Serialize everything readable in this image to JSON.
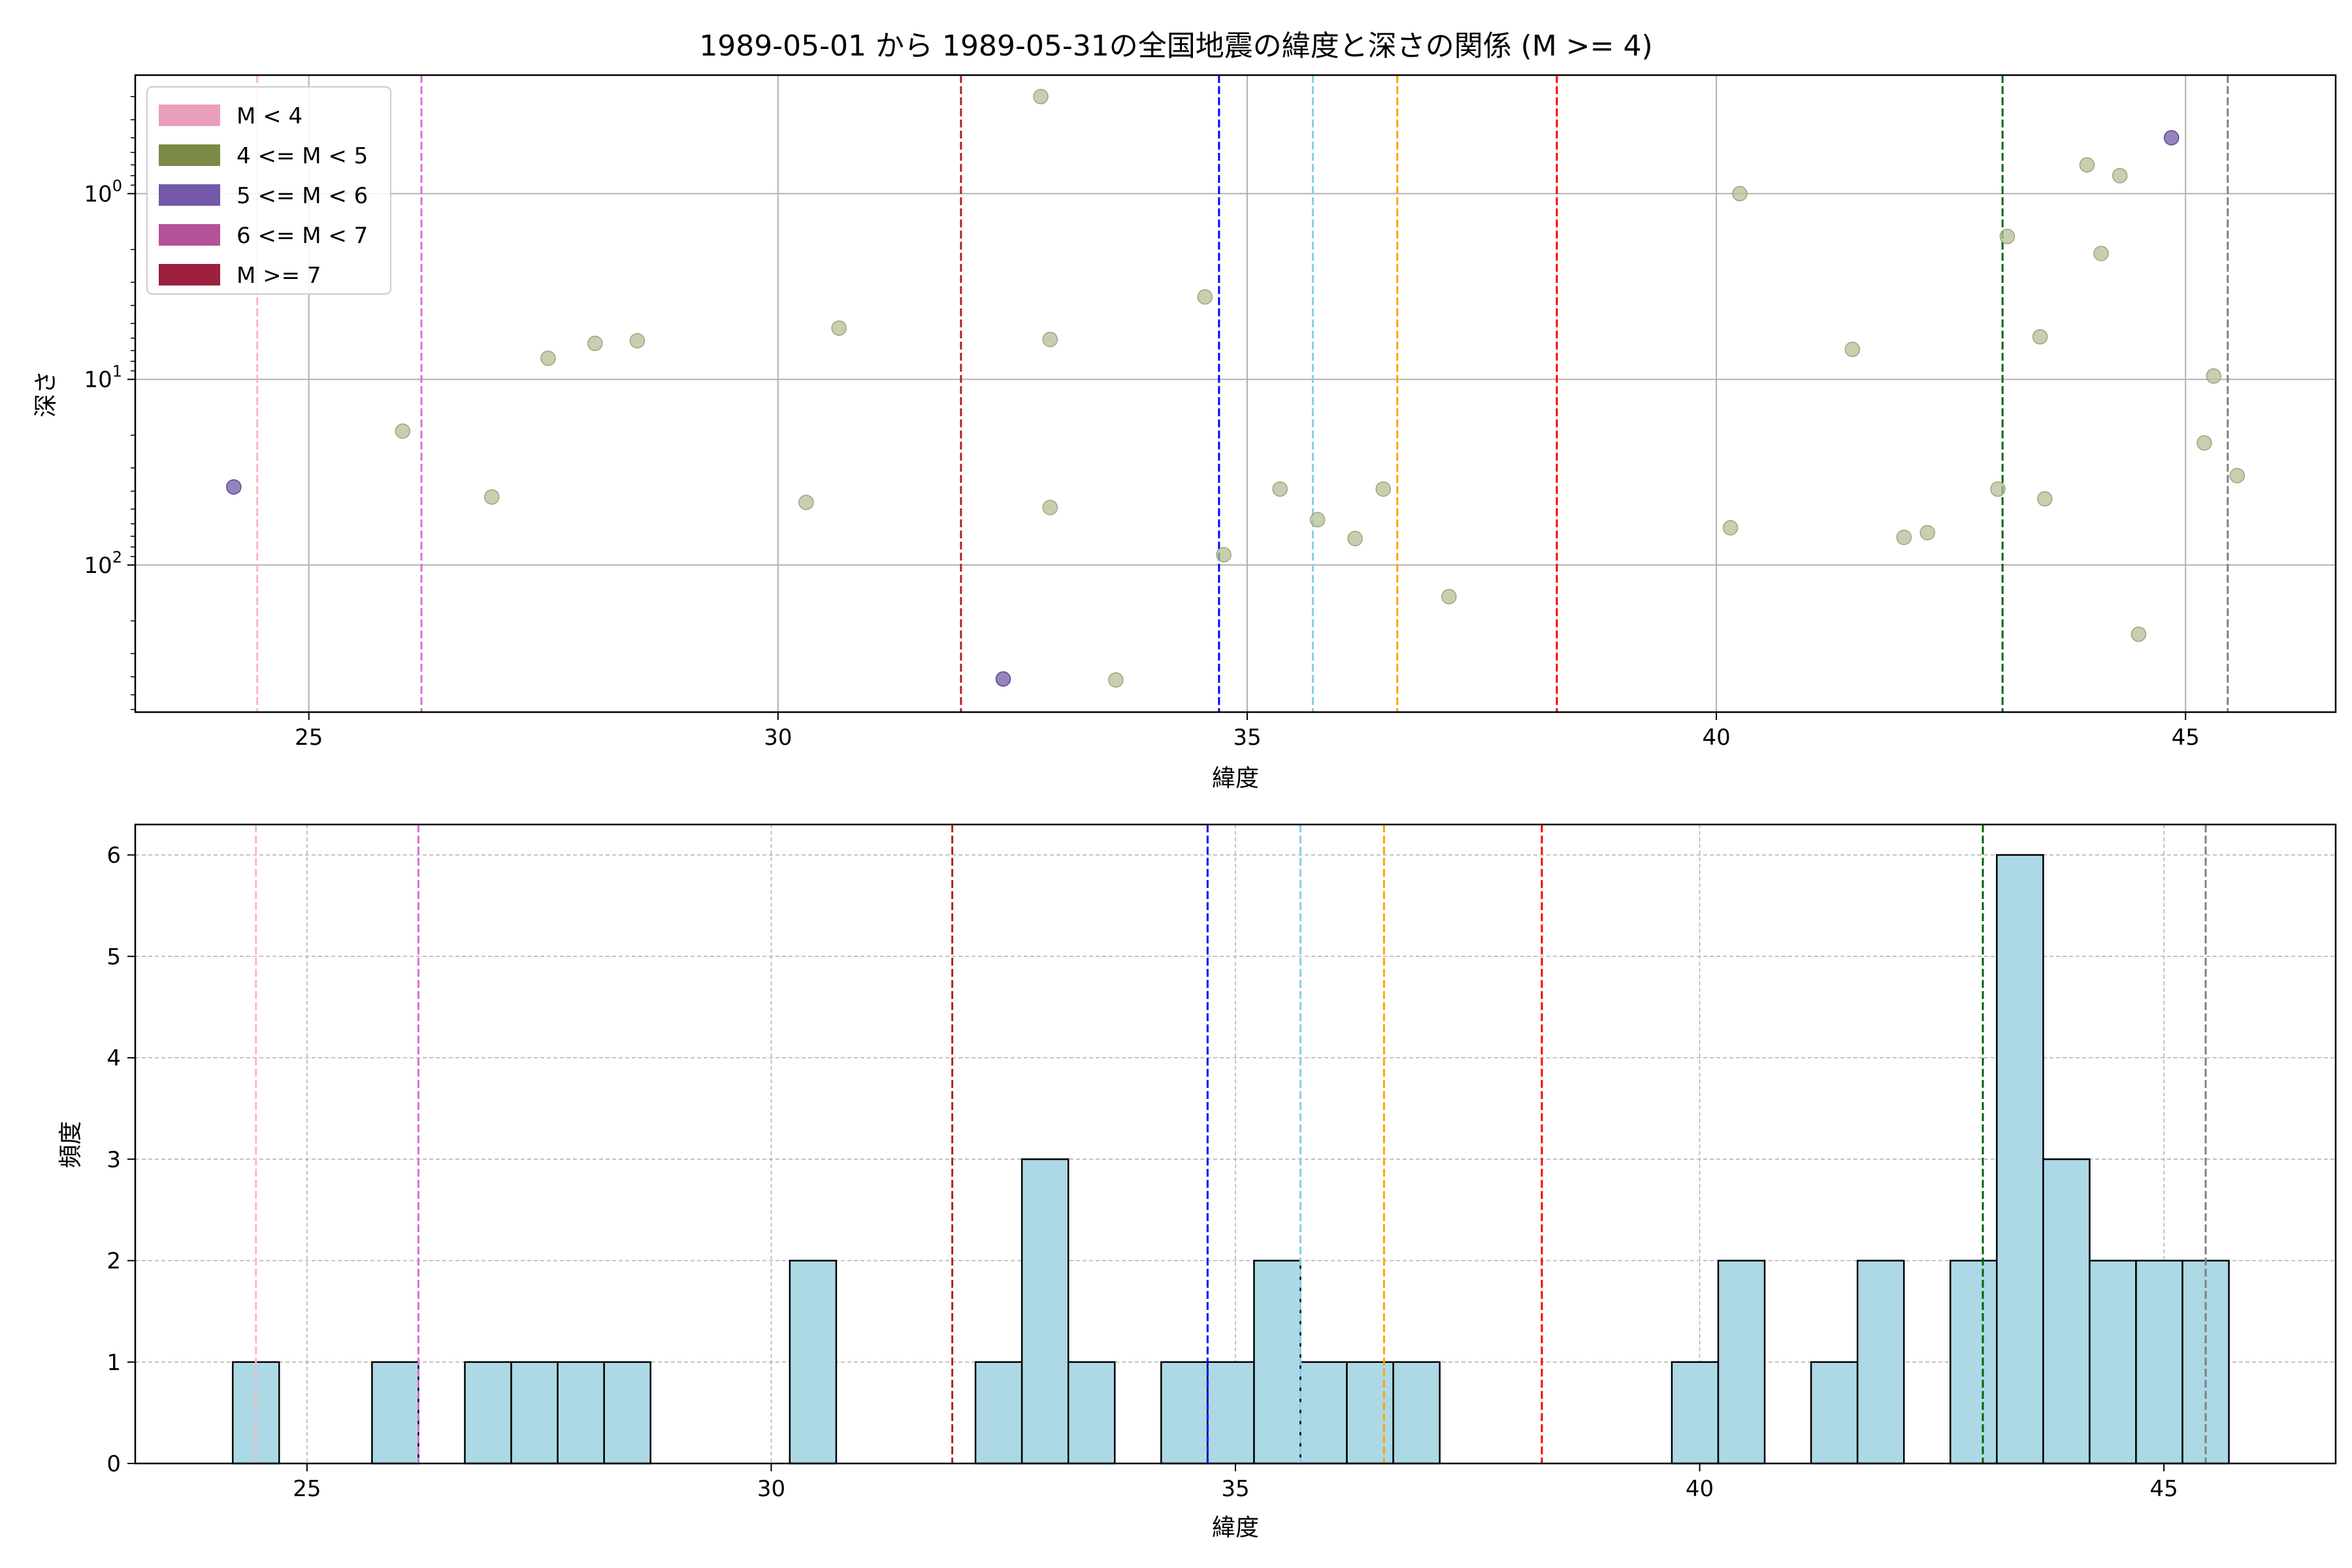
{
  "figure": {
    "title": "1989-05-01 から 1989-05-31の全国地震の緯度と深さの関係 (M >= 4)"
  },
  "scatter": {
    "xlabel": "緯度",
    "ylabel": "深さ",
    "x_ticks": [
      "25",
      "30",
      "35",
      "40",
      "45"
    ],
    "y_tick_labels": [
      {
        "base": "10",
        "exp": "0",
        "value": 1
      },
      {
        "base": "10",
        "exp": "1",
        "value": 10
      },
      {
        "base": "10",
        "exp": "2",
        "value": 100
      }
    ]
  },
  "legend": {
    "items": [
      {
        "label": "M < 4",
        "color": "#e89fbb"
      },
      {
        "label": "4 <= M < 5",
        "color": "#7b8b45"
      },
      {
        "label": "5 <= M < 6",
        "color": "#7359a8"
      },
      {
        "label": "6 <= M < 7",
        "color": "#b5519b"
      },
      {
        "label": "M >= 7",
        "color": "#9c1f3e"
      }
    ]
  },
  "histogram": {
    "xlabel": "緯度",
    "ylabel": "頻度",
    "x_ticks": [
      "25",
      "30",
      "35",
      "40",
      "45"
    ],
    "y_ticks": [
      "0",
      "1",
      "2",
      "3",
      "4",
      "5",
      "6"
    ]
  },
  "chart_data": [
    {
      "type": "scatter",
      "title": "1989-05-01 から 1989-05-31の全国地震の緯度と深さの関係 (M >= 4)",
      "xlabel": "緯度",
      "ylabel": "深さ",
      "xlim": [
        23.15,
        46.6
      ],
      "ylim": [
        620,
        0.23
      ],
      "yscale": "log",
      "y_inverted": true,
      "grid": true,
      "legend_position": "top-left",
      "series": [
        {
          "name": "4 <= M < 5",
          "color": "#b5bf95",
          "points": [
            [
              26.0,
              19
            ],
            [
              26.95,
              43
            ],
            [
              27.55,
              7.7
            ],
            [
              28.05,
              6.4
            ],
            [
              28.5,
              6.2
            ],
            [
              30.3,
              46
            ],
            [
              30.65,
              5.3
            ],
            [
              32.8,
              0.3
            ],
            [
              32.9,
              6.1
            ],
            [
              32.9,
              49
            ],
            [
              33.6,
              416
            ],
            [
              34.55,
              3.6
            ],
            [
              34.75,
              88
            ],
            [
              35.35,
              39
            ],
            [
              35.75,
              57
            ],
            [
              36.15,
              72
            ],
            [
              36.45,
              39
            ],
            [
              37.15,
              148
            ],
            [
              40.15,
              63
            ],
            [
              40.25,
              1.0
            ],
            [
              41.45,
              6.9
            ],
            [
              42.0,
              71
            ],
            [
              42.25,
              67
            ],
            [
              43.0,
              39
            ],
            [
              43.1,
              1.7
            ],
            [
              43.45,
              5.9
            ],
            [
              43.5,
              44
            ],
            [
              43.95,
              0.7
            ],
            [
              44.1,
              2.1
            ],
            [
              44.3,
              0.8
            ],
            [
              44.5,
              236
            ],
            [
              45.2,
              22
            ],
            [
              45.3,
              9.6
            ],
            [
              45.55,
              33
            ]
          ]
        },
        {
          "name": "5 <= M < 6",
          "color": "#7359a8",
          "points": [
            [
              24.2,
              38
            ],
            [
              32.4,
              411
            ],
            [
              44.85,
              0.5
            ]
          ]
        }
      ],
      "reference_lines": [
        {
          "x": 24.45,
          "color": "#ffb6c1"
        },
        {
          "x": 26.2,
          "color": "#da70d6"
        },
        {
          "x": 31.95,
          "color": "#b22222"
        },
        {
          "x": 34.7,
          "color": "#0000ff"
        },
        {
          "x": 35.7,
          "color": "#87ceeb"
        },
        {
          "x": 36.6,
          "color": "#ffa500"
        },
        {
          "x": 38.3,
          "color": "#ff0000"
        },
        {
          "x": 43.05,
          "color": "#006400"
        },
        {
          "x": 45.45,
          "color": "#808080"
        }
      ]
    },
    {
      "type": "bar",
      "xlabel": "緯度",
      "ylabel": "頻度",
      "xlim": [
        23.15,
        46.85
      ],
      "ylim": [
        0,
        6.3
      ],
      "grid": true,
      "bar_color": "#add8e6",
      "edge_color": "#000000",
      "bins": [
        {
          "x0": 24.2,
          "x1": 24.7,
          "count": 1
        },
        {
          "x0": 25.7,
          "x1": 26.2,
          "count": 1
        },
        {
          "x0": 26.7,
          "x1": 27.2,
          "count": 1
        },
        {
          "x0": 27.2,
          "x1": 27.7,
          "count": 1
        },
        {
          "x0": 27.7,
          "x1": 28.2,
          "count": 1
        },
        {
          "x0": 28.2,
          "x1": 28.7,
          "count": 1
        },
        {
          "x0": 30.2,
          "x1": 30.7,
          "count": 2
        },
        {
          "x0": 32.2,
          "x1": 32.7,
          "count": 1
        },
        {
          "x0": 32.7,
          "x1": 33.2,
          "count": 3
        },
        {
          "x0": 33.2,
          "x1": 33.7,
          "count": 1
        },
        {
          "x0": 34.2,
          "x1": 34.7,
          "count": 1
        },
        {
          "x0": 34.7,
          "x1": 35.2,
          "count": 1
        },
        {
          "x0": 35.2,
          "x1": 35.7,
          "count": 2
        },
        {
          "x0": 35.7,
          "x1": 36.2,
          "count": 1
        },
        {
          "x0": 36.2,
          "x1": 36.7,
          "count": 1
        },
        {
          "x0": 36.7,
          "x1": 37.2,
          "count": 1
        },
        {
          "x0": 39.7,
          "x1": 40.2,
          "count": 1
        },
        {
          "x0": 40.2,
          "x1": 40.7,
          "count": 2
        },
        {
          "x0": 41.2,
          "x1": 41.7,
          "count": 1
        },
        {
          "x0": 41.7,
          "x1": 42.2,
          "count": 2
        },
        {
          "x0": 42.7,
          "x1": 43.2,
          "count": 2
        },
        {
          "x0": 43.2,
          "x1": 43.7,
          "count": 6
        },
        {
          "x0": 43.7,
          "x1": 44.2,
          "count": 3
        },
        {
          "x0": 44.2,
          "x1": 44.7,
          "count": 2
        },
        {
          "x0": 44.7,
          "x1": 45.2,
          "count": 2
        },
        {
          "x0": 45.2,
          "x1": 45.7,
          "count": 2
        }
      ],
      "reference_lines": [
        {
          "x": 24.45,
          "color": "#ffb6c1"
        },
        {
          "x": 26.2,
          "color": "#da70d6"
        },
        {
          "x": 31.95,
          "color": "#b22222"
        },
        {
          "x": 34.7,
          "color": "#0000ff"
        },
        {
          "x": 35.7,
          "color": "#87ceeb"
        },
        {
          "x": 36.6,
          "color": "#ffa500"
        },
        {
          "x": 38.3,
          "color": "#ff0000"
        },
        {
          "x": 43.05,
          "color": "#006400"
        },
        {
          "x": 45.45,
          "color": "#808080"
        }
      ]
    }
  ]
}
